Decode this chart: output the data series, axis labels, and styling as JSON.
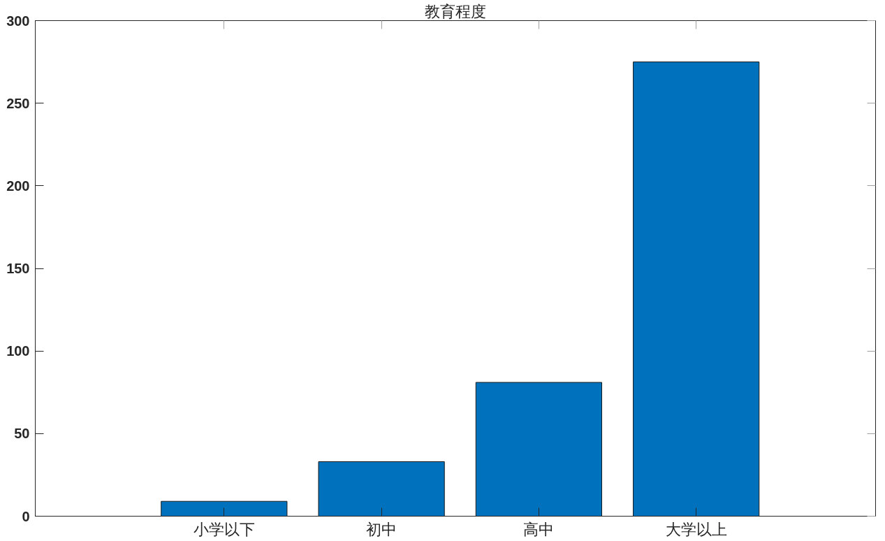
{
  "chart_data": {
    "type": "bar",
    "title": "教育程度",
    "categories": [
      "小学以下",
      "初中",
      "高中",
      "大学以上"
    ],
    "values": [
      9,
      33,
      81,
      275
    ],
    "color": "#0072bd",
    "ylim": [
      0,
      300
    ],
    "yticks": [
      0,
      50,
      100,
      150,
      200,
      250,
      300
    ],
    "grid": false
  }
}
